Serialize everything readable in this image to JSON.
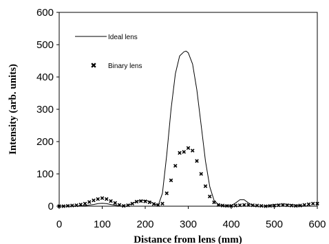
{
  "chart_data": {
    "type": "line",
    "xlabel": "Distance from lens (mm)",
    "ylabel": "Intensity (arb. units)",
    "xlim": [
      0,
      600
    ],
    "ylim": [
      0,
      600
    ],
    "xticks": [
      "0",
      "100",
      "200",
      "300",
      "400",
      "500",
      "600"
    ],
    "yticks": [
      "0",
      "100",
      "200",
      "300",
      "400",
      "500",
      "600"
    ],
    "grid": false,
    "legend_position": "top-left",
    "series": [
      {
        "name": "Ideal lens",
        "style": "line",
        "color": "#000000",
        "x": [
          0,
          20,
          40,
          60,
          80,
          90,
          100,
          110,
          120,
          140,
          155,
          170,
          180,
          190,
          200,
          210,
          220,
          230,
          240,
          250,
          260,
          270,
          280,
          290,
          295,
          300,
          310,
          320,
          330,
          340,
          350,
          360,
          370,
          380,
          390,
          400,
          410,
          420,
          430,
          440,
          450,
          460,
          480,
          500,
          520,
          540,
          560,
          580,
          600
        ],
        "y": [
          0,
          0,
          1,
          2,
          5,
          8,
          9,
          8,
          5,
          1,
          0,
          8,
          15,
          18,
          18,
          15,
          8,
          2,
          40,
          160,
          300,
          410,
          465,
          478,
          480,
          475,
          440,
          360,
          250,
          140,
          60,
          18,
          5,
          2,
          1,
          2,
          10,
          20,
          20,
          10,
          2,
          0,
          0,
          5,
          7,
          5,
          2,
          0,
          0
        ]
      },
      {
        "name": "Binary lens",
        "style": "marker",
        "color": "#000000",
        "x": [
          0,
          10,
          20,
          30,
          40,
          50,
          60,
          70,
          80,
          90,
          100,
          110,
          120,
          130,
          140,
          150,
          160,
          170,
          180,
          190,
          200,
          210,
          220,
          230,
          240,
          250,
          260,
          270,
          280,
          290,
          300,
          310,
          320,
          330,
          340,
          350,
          360,
          370,
          380,
          390,
          400,
          410,
          420,
          430,
          440,
          450,
          460,
          470,
          480,
          490,
          500,
          510,
          520,
          530,
          540,
          550,
          560,
          570,
          580,
          590,
          600
        ],
        "y": [
          0,
          0,
          1,
          2,
          3,
          5,
          8,
          13,
          18,
          22,
          25,
          22,
          16,
          10,
          4,
          1,
          3,
          8,
          14,
          16,
          15,
          12,
          7,
          4,
          8,
          40,
          80,
          125,
          165,
          168,
          180,
          172,
          140,
          100,
          62,
          30,
          12,
          4,
          2,
          1,
          1,
          2,
          3,
          4,
          4,
          3,
          2,
          1,
          0,
          1,
          2,
          3,
          4,
          3,
          2,
          1,
          2,
          4,
          6,
          8,
          8
        ]
      }
    ]
  }
}
